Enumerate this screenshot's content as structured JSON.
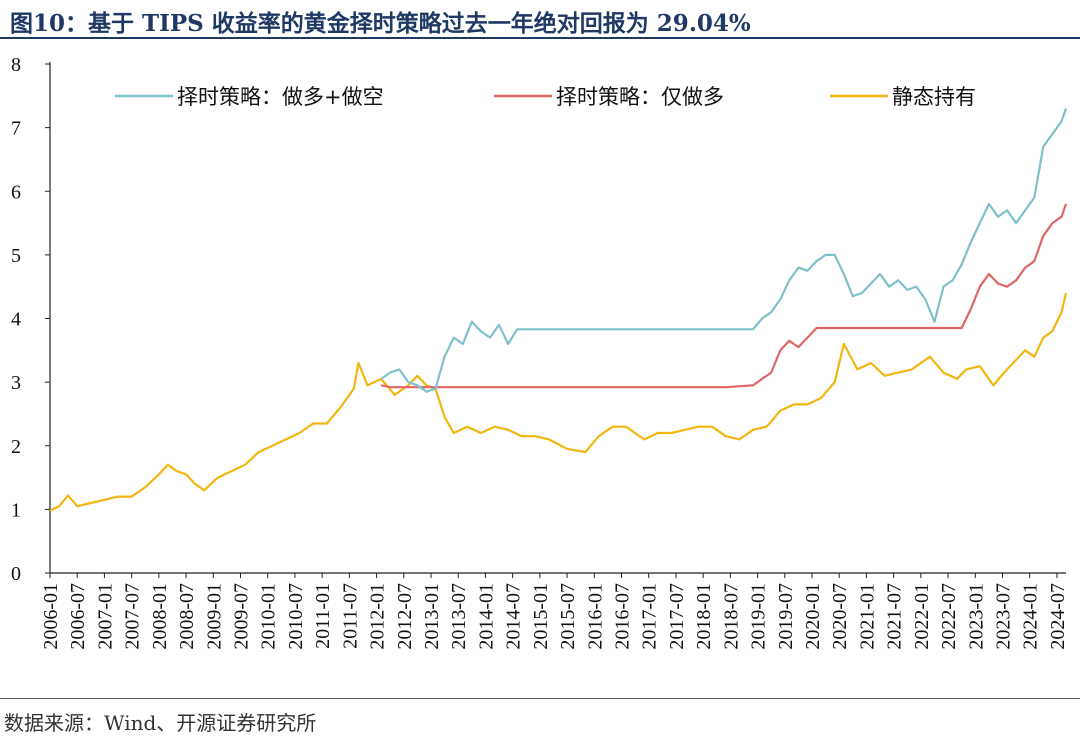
{
  "figure": {
    "title": "图10：基于 TIPS 收益率的黄金择时策略过去一年绝对回报为 29.04%",
    "source": "数据来源：Wind、开源证券研究所"
  },
  "colors": {
    "long_short": "#7fc0cc",
    "long_only": "#e06666",
    "buy_hold": "#f2b610",
    "title": "#1f3864"
  },
  "chart_data": {
    "type": "line",
    "title": "",
    "xlabel": "",
    "ylabel": "",
    "ylim": [
      0,
      8
    ],
    "yticks": [
      "0",
      "1",
      "2",
      "3",
      "4",
      "5",
      "6",
      "7",
      "8"
    ],
    "xlim": [
      "2006-01",
      "2024-09"
    ],
    "xticks": [
      "2006-01",
      "2006-07",
      "2007-01",
      "2007-07",
      "2008-01",
      "2008-07",
      "2009-01",
      "2009-07",
      "2010-01",
      "2010-07",
      "2011-01",
      "2011-07",
      "2012-01",
      "2012-07",
      "2013-01",
      "2013-07",
      "2014-01",
      "2014-07",
      "2015-01",
      "2015-07",
      "2016-01",
      "2016-07",
      "2017-01",
      "2017-07",
      "2018-01",
      "2018-07",
      "2019-01",
      "2019-07",
      "2020-01",
      "2020-07",
      "2021-01",
      "2021-07",
      "2022-01",
      "2022-07",
      "2023-01",
      "2023-07",
      "2024-01",
      "2024-07"
    ],
    "grid": false,
    "legend": "top",
    "series": [
      {
        "name": "择时策略：做多+做空",
        "color": "#7fc0cc",
        "x": [
          "2012-02",
          "2012-04",
          "2012-06",
          "2012-08",
          "2012-10",
          "2012-12",
          "2013-02",
          "2013-04",
          "2013-06",
          "2013-08",
          "2013-10",
          "2013-12",
          "2014-02",
          "2014-04",
          "2014-06",
          "2014-08",
          "2015-06",
          "2016-06",
          "2017-06",
          "2018-06",
          "2018-12",
          "2019-02",
          "2019-04",
          "2019-06",
          "2019-08",
          "2019-10",
          "2019-12",
          "2020-02",
          "2020-04",
          "2020-06",
          "2020-08",
          "2020-10",
          "2020-12",
          "2021-02",
          "2021-04",
          "2021-06",
          "2021-08",
          "2021-10",
          "2021-12",
          "2022-02",
          "2022-04",
          "2022-06",
          "2022-08",
          "2022-10",
          "2022-12",
          "2023-02",
          "2023-04",
          "2023-06",
          "2023-08",
          "2023-10",
          "2023-12",
          "2024-02",
          "2024-04",
          "2024-06",
          "2024-08",
          "2024-09"
        ],
        "y": [
          3.05,
          3.15,
          3.2,
          3.0,
          2.95,
          2.85,
          2.9,
          3.4,
          3.7,
          3.6,
          3.95,
          3.8,
          3.7,
          3.9,
          3.6,
          3.83,
          3.83,
          3.83,
          3.83,
          3.83,
          3.83,
          4.0,
          4.1,
          4.3,
          4.6,
          4.8,
          4.75,
          4.9,
          5.0,
          5.0,
          4.7,
          4.35,
          4.4,
          4.55,
          4.7,
          4.5,
          4.6,
          4.45,
          4.5,
          4.3,
          3.95,
          4.5,
          4.6,
          4.85,
          5.2,
          5.5,
          5.8,
          5.6,
          5.7,
          5.5,
          5.7,
          5.9,
          6.7,
          6.9,
          7.1,
          7.3
        ]
      },
      {
        "name": "择时策略：仅做多",
        "color": "#e06666",
        "x": [
          "2012-02",
          "2012-04",
          "2012-06",
          "2012-08",
          "2012-10",
          "2012-12",
          "2013-06",
          "2014-06",
          "2015-06",
          "2016-06",
          "2017-06",
          "2018-06",
          "2018-12",
          "2019-02",
          "2019-04",
          "2019-06",
          "2019-08",
          "2019-10",
          "2019-12",
          "2020-02",
          "2020-04",
          "2021-04",
          "2022-04",
          "2022-08",
          "2022-10",
          "2022-12",
          "2023-02",
          "2023-04",
          "2023-06",
          "2023-08",
          "2023-10",
          "2023-12",
          "2024-02",
          "2024-04",
          "2024-06",
          "2024-08",
          "2024-09"
        ],
        "y": [
          2.95,
          2.92,
          2.92,
          2.92,
          2.92,
          2.92,
          2.92,
          2.92,
          2.92,
          2.92,
          2.92,
          2.92,
          2.95,
          3.05,
          3.15,
          3.5,
          3.65,
          3.55,
          3.7,
          3.85,
          3.85,
          3.85,
          3.85,
          3.85,
          3.85,
          4.15,
          4.5,
          4.7,
          4.55,
          4.5,
          4.6,
          4.8,
          4.9,
          5.3,
          5.5,
          5.6,
          5.8
        ]
      },
      {
        "name": "静态持有",
        "color": "#f2b610",
        "x": [
          "2006-01",
          "2006-03",
          "2006-05",
          "2006-07",
          "2006-10",
          "2007-01",
          "2007-04",
          "2007-07",
          "2007-10",
          "2008-01",
          "2008-03",
          "2008-05",
          "2008-07",
          "2008-09",
          "2008-11",
          "2009-02",
          "2009-05",
          "2009-08",
          "2009-11",
          "2010-02",
          "2010-05",
          "2010-08",
          "2010-11",
          "2011-02",
          "2011-05",
          "2011-08",
          "2011-09",
          "2011-11",
          "2012-02",
          "2012-05",
          "2012-08",
          "2012-10",
          "2012-12",
          "2013-02",
          "2013-04",
          "2013-06",
          "2013-09",
          "2013-12",
          "2014-03",
          "2014-06",
          "2014-09",
          "2014-12",
          "2015-03",
          "2015-07",
          "2015-11",
          "2016-02",
          "2016-05",
          "2016-08",
          "2016-12",
          "2017-03",
          "2017-06",
          "2017-09",
          "2017-12",
          "2018-03",
          "2018-06",
          "2018-09",
          "2018-12",
          "2019-03",
          "2019-06",
          "2019-09",
          "2019-12",
          "2020-03",
          "2020-06",
          "2020-08",
          "2020-11",
          "2021-02",
          "2021-05",
          "2021-08",
          "2021-11",
          "2022-03",
          "2022-06",
          "2022-09",
          "2022-11",
          "2023-02",
          "2023-05",
          "2023-08",
          "2023-10",
          "2023-12",
          "2024-02",
          "2024-04",
          "2024-06",
          "2024-08",
          "2024-09"
        ],
        "y": [
          0.98,
          1.05,
          1.22,
          1.05,
          1.1,
          1.15,
          1.2,
          1.2,
          1.35,
          1.55,
          1.7,
          1.6,
          1.55,
          1.4,
          1.3,
          1.5,
          1.6,
          1.7,
          1.9,
          2.0,
          2.1,
          2.2,
          2.35,
          2.35,
          2.6,
          2.9,
          3.3,
          2.95,
          3.05,
          2.8,
          2.95,
          3.1,
          2.95,
          2.9,
          2.45,
          2.2,
          2.3,
          2.2,
          2.3,
          2.25,
          2.15,
          2.15,
          2.1,
          1.95,
          1.9,
          2.15,
          2.3,
          2.3,
          2.1,
          2.2,
          2.2,
          2.25,
          2.3,
          2.3,
          2.15,
          2.1,
          2.25,
          2.3,
          2.55,
          2.65,
          2.65,
          2.75,
          3.0,
          3.6,
          3.2,
          3.3,
          3.1,
          3.15,
          3.2,
          3.4,
          3.15,
          3.05,
          3.2,
          3.25,
          2.95,
          3.2,
          3.35,
          3.5,
          3.4,
          3.7,
          3.8,
          4.1,
          4.4
        ]
      }
    ]
  }
}
